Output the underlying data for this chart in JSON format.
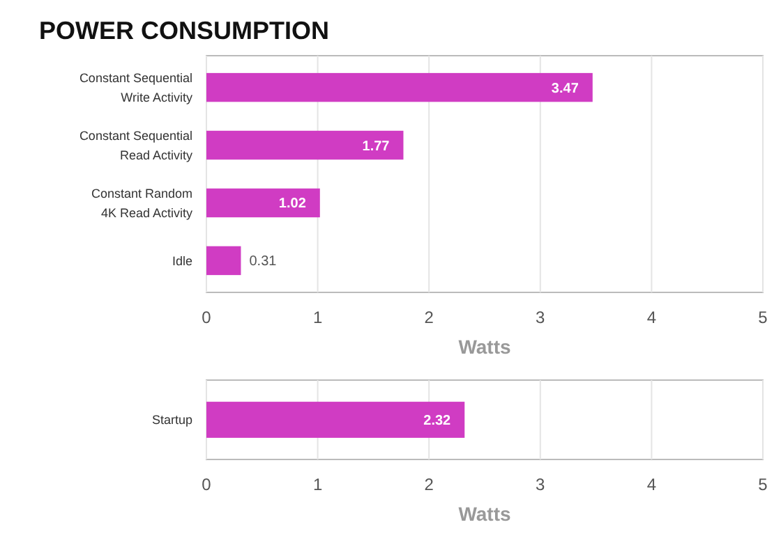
{
  "chart_data": [
    {
      "type": "bar",
      "title": "POWER CONSUMPTION",
      "orientation": "horizontal",
      "categories": [
        "Constant Sequential\nWrite Activity",
        "Constant Sequential\nRead Activity",
        "Constant Random\n4K Read Activity",
        "Idle"
      ],
      "values": [
        3.47,
        1.77,
        1.02,
        0.31
      ],
      "color": "#d03cc3",
      "xlim": [
        0,
        5
      ],
      "xticks": [
        0,
        1,
        2,
        3,
        4,
        5
      ],
      "xlabel": "Watts",
      "grid": "x",
      "data_labels": true
    },
    {
      "type": "bar",
      "orientation": "horizontal",
      "categories": [
        "Startup"
      ],
      "values": [
        2.32
      ],
      "color": "#d03cc3",
      "xlim": [
        0,
        5
      ],
      "xticks": [
        0,
        1,
        2,
        3,
        4,
        5
      ],
      "xlabel": "Watts",
      "grid": "x",
      "data_labels": true
    }
  ]
}
